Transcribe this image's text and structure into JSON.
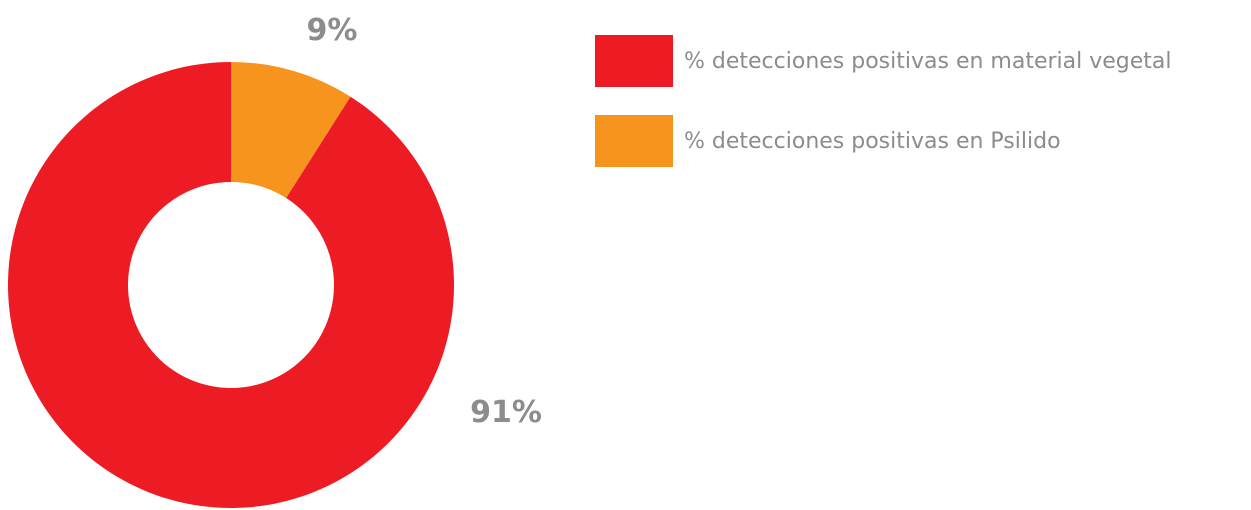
{
  "chart_data": {
    "type": "pie",
    "variant": "donut",
    "series": [
      {
        "name": "% detecciones positivas en Psilido",
        "value": 9,
        "label": "9%",
        "color": "#f7941d"
      },
      {
        "name": "% detecciones positivas en material vegetal",
        "value": 91,
        "label": "91%",
        "color": "#ed1c24"
      }
    ],
    "legend": {
      "position": "right",
      "items": [
        {
          "label": "% detecciones positivas en material vegetal",
          "color": "#ed1c24"
        },
        {
          "label": "% detecciones positivas en Psilido",
          "color": "#f7941d"
        }
      ]
    },
    "title": ""
  }
}
